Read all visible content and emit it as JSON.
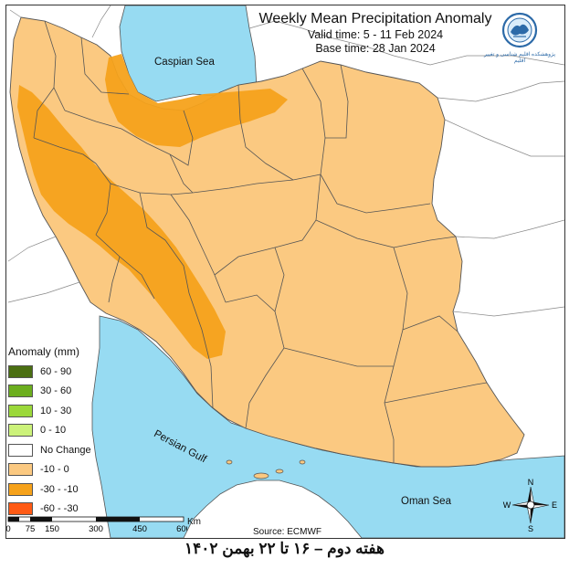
{
  "title": "Weekly Mean Precipitation Anomaly",
  "valid_time": "Valid time:  5 - 11 Feb 2024",
  "base_time": "Base time: 28 Jan 2024",
  "logo_text": "پژوهشکده اقلیم شناسی و تغییر اقلیم",
  "labels": {
    "caspian_sea": "Caspian Sea",
    "persian_gulf": "Persian Gulf",
    "oman_sea": "Oman Sea"
  },
  "legend": {
    "title": "Anomaly (mm)",
    "items": [
      {
        "label": "60 - 90",
        "color": "#4a6f12"
      },
      {
        "label": "30 - 60",
        "color": "#6cae1e"
      },
      {
        "label": "10 - 30",
        "color": "#9bd83a"
      },
      {
        "label": "0 - 10",
        "color": "#ccf27a"
      },
      {
        "label": "No Change",
        "color": "#ffffff"
      },
      {
        "label": "-10 - 0",
        "color": "#fbc981"
      },
      {
        "label": "-30 - -10",
        "color": "#f6a21b"
      },
      {
        "label": "-60 - -30",
        "color": "#ff5a14"
      }
    ]
  },
  "scale": {
    "ticks": [
      "0",
      "75",
      "150",
      "300",
      "450",
      "600"
    ],
    "unit": "Km"
  },
  "compass": {
    "n": "N",
    "s": "S",
    "e": "E",
    "w": "W"
  },
  "source": "Source: ECMWF",
  "footer": "هفته دوم – ۱۶ تا ۲۲ بهمن ۱۴۰۲",
  "colors": {
    "water": "#97dbf2",
    "land_outside": "#ffffff",
    "anomaly_light": "#fbc981",
    "anomaly_medium": "#f6a21b"
  }
}
